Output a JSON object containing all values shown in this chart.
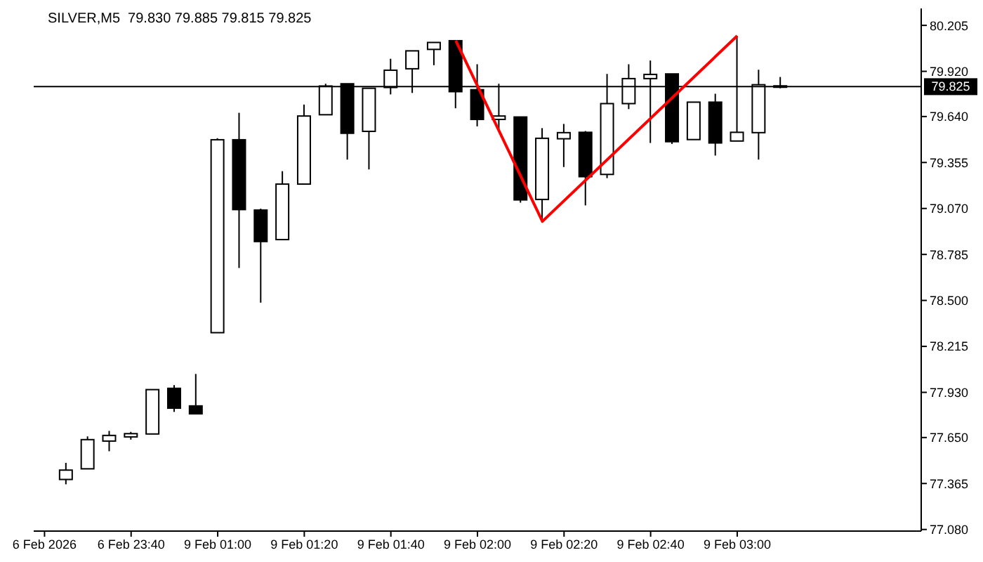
{
  "chart_data": {
    "type": "candlestick",
    "title": "SILVER,M5  79.830 79.885 79.815 79.825",
    "categories": [
      "6 Feb 2026",
      null,
      null,
      null,
      "6 Feb 23:40",
      null,
      null,
      null,
      "9 Feb 01:00",
      null,
      null,
      null,
      "9 Feb 01:20",
      null,
      null,
      null,
      "9 Feb 01:40",
      null,
      null,
      null,
      "9 Feb 02:00",
      null,
      null,
      null,
      "9 Feb 02:20",
      null,
      null,
      null,
      "9 Feb 02:40",
      null,
      null,
      null,
      "9 Feb 03:00",
      null,
      null,
      null,
      null,
      null,
      null,
      null,
      null
    ],
    "ohlc": [
      null,
      [
        77.39,
        77.493,
        77.36,
        77.448
      ],
      [
        77.456,
        77.657,
        77.456,
        77.637
      ],
      [
        77.628,
        77.691,
        77.565,
        77.663
      ],
      [
        77.654,
        77.685,
        77.637,
        77.674
      ],
      [
        77.672,
        77.947,
        77.672,
        77.947
      ],
      [
        77.955,
        77.975,
        77.809,
        77.832
      ],
      [
        77.846,
        78.044,
        77.797,
        77.797
      ],
      [
        78.3,
        79.505,
        78.3,
        79.496
      ],
      [
        79.496,
        79.663,
        78.701,
        79.063
      ],
      [
        79.06,
        79.069,
        78.486,
        78.865
      ],
      [
        78.877,
        79.301,
        78.877,
        79.221
      ],
      [
        79.221,
        79.714,
        79.221,
        79.643
      ],
      [
        79.651,
        79.843,
        79.651,
        79.829
      ],
      [
        79.843,
        79.843,
        79.373,
        79.536
      ],
      [
        79.548,
        79.815,
        79.312,
        79.815
      ],
      [
        79.82,
        79.998,
        79.777,
        79.927
      ],
      [
        79.936,
        80.047,
        79.786,
        80.047
      ],
      [
        80.056,
        80.099,
        79.958,
        80.099
      ],
      [
        80.11,
        80.11,
        79.691,
        79.794
      ],
      [
        79.806,
        79.964,
        79.579,
        79.622
      ],
      [
        79.622,
        79.843,
        79.551,
        79.643
      ],
      [
        79.637,
        79.637,
        79.106,
        79.123
      ],
      [
        79.126,
        79.568,
        78.983,
        79.505
      ],
      [
        79.502,
        79.594,
        79.327,
        79.54
      ],
      [
        79.542,
        79.55,
        79.089,
        79.267
      ],
      [
        79.281,
        79.904,
        79.258,
        79.72
      ],
      [
        79.72,
        79.964,
        79.686,
        79.875
      ],
      [
        79.875,
        79.987,
        79.476,
        79.901
      ],
      [
        79.904,
        79.904,
        79.47,
        79.484
      ],
      [
        79.497,
        79.729,
        79.497,
        79.729
      ],
      [
        79.729,
        79.781,
        79.398,
        79.476
      ],
      [
        79.488,
        80.14,
        79.488,
        79.542
      ],
      [
        79.54,
        79.93,
        79.373,
        79.837
      ],
      [
        79.83,
        79.885,
        79.815,
        79.825
      ],
      null,
      null,
      null,
      null,
      null,
      null
    ],
    "colors": [
      null,
      "#ffffff",
      "#ffffff",
      "#ffffff",
      "#ffffff",
      "#ffffff",
      "#000000",
      "#000000",
      "#ffffff",
      "#000000",
      "#000000",
      "#ffffff",
      "#ffffff",
      "#ffffff",
      "#000000",
      "#ffffff",
      "#ffffff",
      "#ffffff",
      "#ffffff",
      "#000000",
      "#000000",
      "#ffffff",
      "#000000",
      "#ffffff",
      "#ffffff",
      "#000000",
      "#ffffff",
      "#ffffff",
      "#ffffff",
      "#000000",
      "#ffffff",
      "#000000",
      "#ffffff",
      "#ffffff",
      "#000000",
      null,
      null,
      null,
      null,
      null,
      null
    ],
    "series": [
      {
        "type": "line",
        "color": "#ff0000",
        "values": [
          null,
          null,
          null,
          null,
          null,
          null,
          null,
          null,
          null,
          null,
          null,
          null,
          null,
          null,
          null,
          null,
          null,
          null,
          null,
          80.11,
          null,
          null,
          null,
          78.99,
          null,
          null,
          null,
          null,
          null,
          null,
          null,
          null,
          80.14,
          null,
          null,
          null,
          null,
          null,
          null,
          null,
          null
        ]
      }
    ],
    "ylim": [
      77.07,
      80.31
    ],
    "yticks": [
      {
        "value": 77.08,
        "label": "77.080"
      },
      {
        "value": 77.365,
        "label": "77.365"
      },
      {
        "value": 77.65,
        "label": "77.650"
      },
      {
        "value": 77.93,
        "label": "77.930"
      },
      {
        "value": 78.215,
        "label": "78.215"
      },
      {
        "value": 78.5,
        "label": "78.500"
      },
      {
        "value": 78.785,
        "label": "78.785"
      },
      {
        "value": 79.07,
        "label": "79.070"
      },
      {
        "value": 79.355,
        "label": "79.355"
      },
      {
        "value": 79.64,
        "label": "79.640"
      },
      {
        "value": 79.92,
        "label": "79.920"
      },
      {
        "value": 80.205,
        "label": "80.205"
      }
    ],
    "ref_lines": [
      {
        "axis": "y",
        "value": 79.825,
        "label": "79.825",
        "color": "#000000"
      }
    ],
    "grid": false,
    "legend": false
  }
}
